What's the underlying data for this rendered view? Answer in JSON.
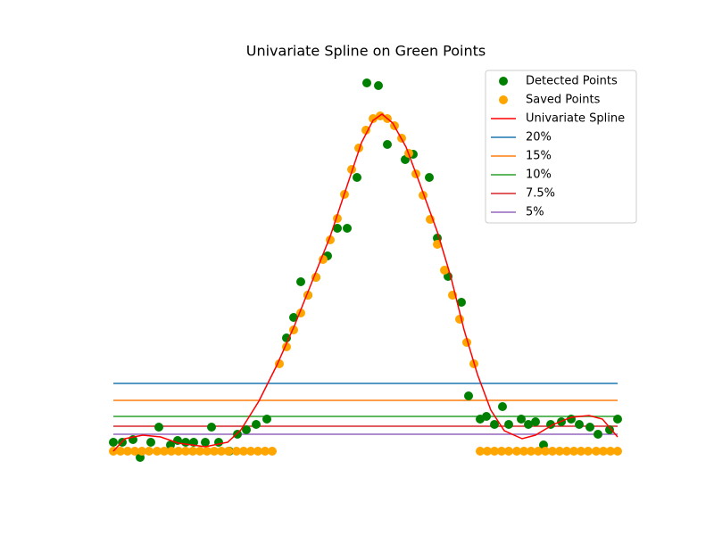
{
  "chart_data": {
    "type": "scatter",
    "title": "Univariate Spline on Green Points",
    "xlim": [
      -27,
      593
    ],
    "ylim": [
      -22,
      434
    ],
    "legend": "upper right",
    "series": [
      {
        "name": "Detected Points",
        "type": "scatter",
        "color": "green",
        "x": [
          0,
          10,
          22,
          30,
          42,
          51,
          64,
          72,
          81,
          90,
          103,
          110,
          118,
          130,
          139,
          149,
          160,
          172,
          194,
          202,
          210,
          218,
          227,
          240,
          251,
          262,
          273,
          284,
          297,
          307,
          327,
          336,
          354,
          363,
          375,
          390,
          398,
          411,
          418,
          427,
          436,
          443,
          457,
          465,
          473,
          482,
          490,
          502,
          513,
          522,
          534,
          543,
          556,
          565
        ],
        "values": [
          10,
          10,
          13,
          -7,
          10,
          27,
          7,
          12,
          10,
          10,
          10,
          27,
          10,
          0,
          19,
          24,
          30,
          36,
          127,
          150,
          190,
          175,
          195,
          219,
          250,
          250,
          307,
          413,
          410,
          344,
          327,
          333,
          307,
          239,
          196,
          167,
          62,
          36,
          39,
          30,
          50,
          30,
          36,
          30,
          33,
          7,
          30,
          33,
          36,
          30,
          27,
          19,
          24,
          36
        ]
      },
      {
        "name": "Saved Points",
        "type": "scatter",
        "color": "orange",
        "x": [
          0,
          8,
          16,
          24,
          32,
          40,
          49,
          57,
          65,
          73,
          81,
          89,
          97,
          105,
          113,
          121,
          129,
          138,
          146,
          154,
          162,
          170,
          178,
          186,
          194,
          202,
          210,
          218,
          227,
          235,
          243,
          251,
          259,
          267,
          275,
          283,
          291,
          299,
          307,
          315,
          323,
          331,
          339,
          347,
          355,
          363,
          371,
          380,
          388,
          396,
          404,
          411,
          419,
          427,
          435,
          443,
          452,
          460,
          468,
          476,
          484,
          492,
          500,
          508,
          516,
          524,
          532,
          541,
          549,
          557,
          565
        ],
        "values": [
          0,
          0,
          0,
          0,
          0,
          0,
          0,
          0,
          0,
          0,
          0,
          0,
          0,
          0,
          0,
          0,
          0,
          0,
          0,
          0,
          0,
          0,
          0,
          98,
          117,
          136,
          155,
          175,
          195,
          215,
          237,
          261,
          288,
          316,
          340,
          360,
          373,
          376,
          373,
          365,
          351,
          334,
          311,
          287,
          260,
          232,
          203,
          175,
          148,
          122,
          98,
          0,
          0,
          0,
          0,
          0,
          0,
          0,
          0,
          0,
          0,
          0,
          0,
          0,
          0,
          0,
          0,
          0,
          0,
          0,
          0
        ]
      },
      {
        "name": "Univariate Spline",
        "type": "line",
        "color": "red",
        "x": [
          0,
          13,
          33,
          53,
          73,
          103,
          128,
          143,
          163,
          183,
          203,
          223,
          243,
          263,
          278,
          291,
          301,
          313,
          328,
          343,
          363,
          378,
          393,
          408,
          423,
          438,
          458,
          473,
          493,
          513,
          533,
          548,
          565
        ],
        "values": [
          0,
          14,
          18,
          16,
          9,
          5,
          10,
          24,
          56,
          96,
          141,
          191,
          241,
          301,
          346,
          371,
          378,
          368,
          341,
          301,
          246,
          196,
          136,
          86,
          46,
          23,
          14,
          18,
          30,
          38,
          40,
          36,
          16
        ]
      },
      {
        "name": "20%",
        "type": "hline",
        "color": "#1f77b4",
        "x": [
          0,
          565
        ],
        "value": 76
      },
      {
        "name": "15%",
        "type": "hline",
        "color": "#ff7f0e",
        "x": [
          0,
          565
        ],
        "value": 57
      },
      {
        "name": "10%",
        "type": "hline",
        "color": "#2ca02c",
        "x": [
          0,
          565
        ],
        "value": 39
      },
      {
        "name": "7.5%",
        "type": "hline",
        "color": "#d62728",
        "x": [
          0,
          565
        ],
        "value": 28
      },
      {
        "name": "5%",
        "type": "hline",
        "color": "#9467bd",
        "x": [
          0,
          565
        ],
        "value": 19
      }
    ]
  }
}
